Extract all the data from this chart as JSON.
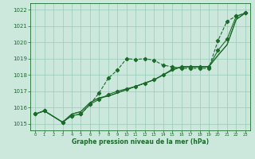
{
  "title": "Graphe pression niveau de la mer (hPa)",
  "bg_color": "#cce8dc",
  "grid_color": "#99cbb8",
  "line_color": "#1a6b2a",
  "xlim": [
    -0.5,
    23.5
  ],
  "ylim": [
    1014.6,
    1022.4
  ],
  "yticks": [
    1015,
    1016,
    1017,
    1018,
    1019,
    1020,
    1021,
    1022
  ],
  "xticks": [
    0,
    1,
    2,
    3,
    4,
    5,
    6,
    7,
    8,
    9,
    10,
    11,
    12,
    13,
    14,
    15,
    16,
    17,
    18,
    19,
    20,
    21,
    22,
    23
  ],
  "line1_x": [
    0,
    1,
    3,
    4,
    5,
    6,
    7,
    8,
    9,
    10,
    11,
    12,
    13,
    14,
    15,
    16,
    17,
    18,
    19,
    20,
    21,
    22,
    23
  ],
  "line1_y": [
    1015.6,
    1015.8,
    1015.1,
    1015.5,
    1015.6,
    1016.2,
    1016.9,
    1017.8,
    1018.3,
    1019.0,
    1018.95,
    1019.0,
    1018.9,
    1018.6,
    1018.5,
    1018.4,
    1018.4,
    1018.4,
    1018.4,
    1020.1,
    1021.3,
    1021.6,
    1021.8
  ],
  "line2_x": [
    0,
    1,
    3,
    4,
    5,
    6,
    7,
    8,
    9,
    10,
    11,
    12,
    13,
    14,
    15,
    16,
    17,
    18,
    19,
    20,
    21,
    22,
    23
  ],
  "line2_y": [
    1015.6,
    1015.8,
    1015.1,
    1015.5,
    1015.6,
    1016.2,
    1016.5,
    1016.8,
    1017.0,
    1017.15,
    1017.3,
    1017.5,
    1017.7,
    1018.0,
    1018.35,
    1018.5,
    1018.5,
    1018.5,
    1018.5,
    1019.5,
    1020.2,
    1021.6,
    1021.8
  ],
  "line3_x": [
    0,
    1,
    3,
    4,
    5,
    6,
    7,
    8,
    9,
    10,
    11,
    12,
    13,
    14,
    15,
    16,
    17,
    18,
    19,
    20,
    21,
    22,
    23
  ],
  "line3_y": [
    1015.6,
    1015.8,
    1015.1,
    1015.6,
    1015.75,
    1016.3,
    1016.6,
    1016.7,
    1016.9,
    1017.1,
    1017.3,
    1017.5,
    1017.7,
    1018.0,
    1018.3,
    1018.5,
    1018.5,
    1018.5,
    1018.5,
    1019.2,
    1019.85,
    1021.4,
    1021.8
  ],
  "line4_x": [
    0,
    1,
    3,
    4,
    5,
    6,
    7,
    8,
    9,
    10,
    11,
    12,
    13,
    14,
    15,
    16,
    17,
    18,
    19,
    20,
    21,
    22,
    23
  ],
  "line4_y": [
    1015.6,
    1015.8,
    1015.1,
    1015.6,
    1015.75,
    1016.3,
    1016.6,
    1016.7,
    1016.9,
    1017.1,
    1017.3,
    1017.5,
    1017.7,
    1018.0,
    1018.3,
    1018.5,
    1018.5,
    1018.5,
    1018.5,
    1019.2,
    1019.85,
    1021.4,
    1021.8
  ]
}
